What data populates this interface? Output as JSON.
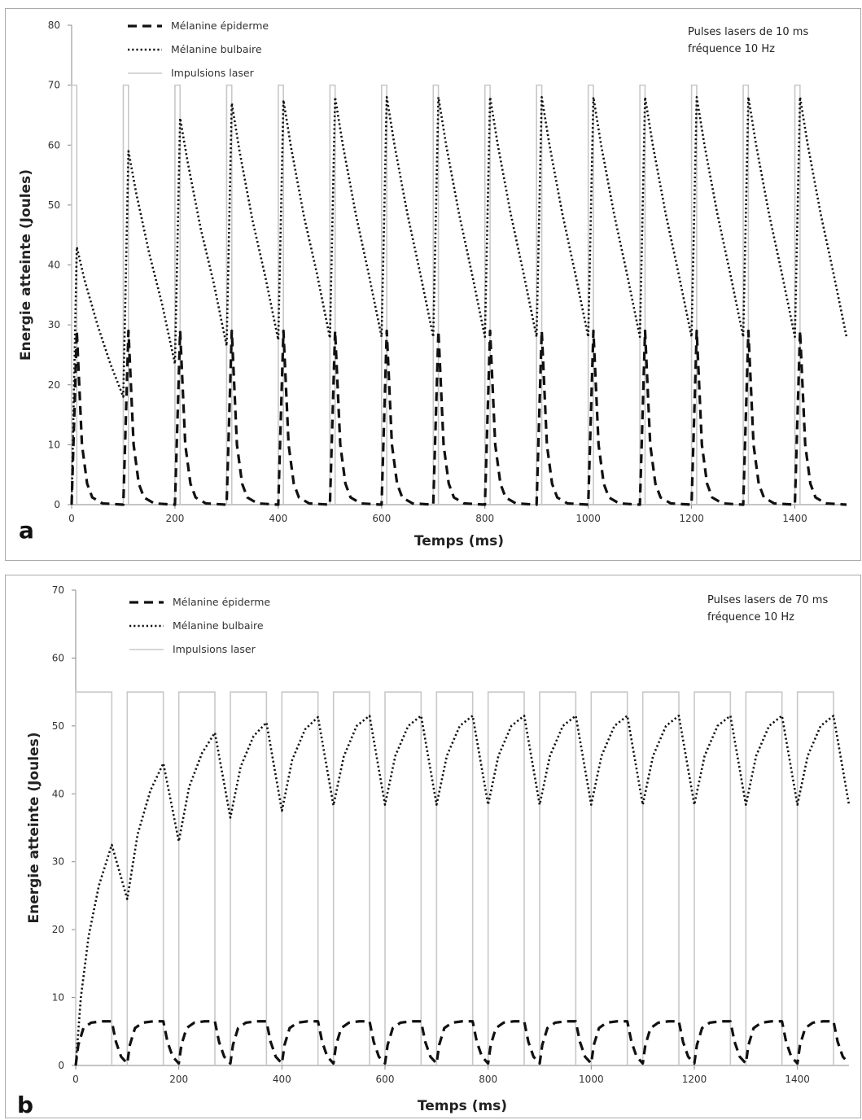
{
  "chart_data": [
    {
      "panel_label": "a",
      "type": "line",
      "xlabel": "Temps (ms)",
      "ylabel": "Energie atteinte (Joules)",
      "xlim": [
        0,
        1500
      ],
      "ylim": [
        0,
        80
      ],
      "x_ticks": [
        0,
        200,
        400,
        600,
        800,
        1000,
        1200,
        1400
      ],
      "y_ticks": [
        0,
        10,
        20,
        30,
        40,
        50,
        60,
        70,
        80
      ],
      "annotation": [
        "Pulses lasers de 10 ms",
        "fréquence 10 Hz"
      ],
      "legend_position": "top-left",
      "legend": [
        "Mélanine épiderme",
        "Mélanine bulbaire",
        "Impulsions laser"
      ],
      "laser_pulse": {
        "period": 100,
        "duration": 10,
        "level": 70
      },
      "series": [
        {
          "name": "Mélanine épiderme",
          "style": "dashed",
          "x": [
            0,
            10,
            20,
            30,
            40,
            60,
            100,
            110,
            120,
            130,
            140,
            160,
            200,
            210,
            220,
            230,
            240,
            260,
            300,
            310,
            320,
            330,
            340,
            360,
            400,
            410,
            420,
            430,
            440,
            460,
            500,
            510,
            520,
            530,
            540,
            560,
            600,
            610,
            620,
            630,
            640,
            660,
            700,
            710,
            720,
            730,
            740,
            760,
            800,
            810,
            820,
            830,
            840,
            860,
            900,
            910,
            920,
            930,
            940,
            960,
            1000,
            1010,
            1020,
            1030,
            1040,
            1060,
            1100,
            1110,
            1120,
            1130,
            1140,
            1160,
            1200,
            1210,
            1220,
            1230,
            1240,
            1260,
            1300,
            1310,
            1320,
            1330,
            1340,
            1360,
            1400,
            1410,
            1420,
            1430,
            1440,
            1460,
            1500
          ],
          "y": [
            0,
            29,
            10,
            3.5,
            1.2,
            0.2,
            0,
            29,
            10,
            3.5,
            1.2,
            0.2,
            0,
            29,
            10,
            3.5,
            1.2,
            0.2,
            0,
            29,
            10,
            3.5,
            1.2,
            0.2,
            0,
            29,
            10,
            3.5,
            1.2,
            0.2,
            0,
            29,
            10,
            3.5,
            1.2,
            0.2,
            0,
            29,
            10,
            3.5,
            1.2,
            0.2,
            0,
            29,
            10,
            3.5,
            1.2,
            0.2,
            0,
            29,
            10,
            3.5,
            1.2,
            0.2,
            0,
            29,
            10,
            3.5,
            1.2,
            0.2,
            0,
            29,
            10,
            3.5,
            1.2,
            0.2,
            0,
            29,
            10,
            3.5,
            1.2,
            0.2,
            0,
            29,
            10,
            3.5,
            1.2,
            0.2,
            0,
            29,
            10,
            3.5,
            1.2,
            0.2,
            0,
            29,
            10,
            3.5,
            1.2,
            0.2,
            0
          ]
        },
        {
          "name": "Mélanine bulbaire",
          "style": "dotted",
          "x": [
            0,
            10,
            25,
            50,
            75,
            100,
            110,
            125,
            150,
            175,
            200,
            210,
            225,
            250,
            275,
            300,
            310,
            325,
            350,
            375,
            400,
            410,
            425,
            450,
            475,
            500,
            510,
            525,
            550,
            575,
            600,
            610,
            625,
            650,
            675,
            700,
            710,
            725,
            750,
            775,
            800,
            810,
            825,
            850,
            875,
            900,
            910,
            925,
            950,
            975,
            1000,
            1010,
            1025,
            1050,
            1075,
            1100,
            1110,
            1125,
            1150,
            1175,
            1200,
            1210,
            1225,
            1250,
            1275,
            1300,
            1310,
            1325,
            1350,
            1375,
            1400,
            1410,
            1425,
            1450,
            1475,
            1500
          ],
          "y": [
            0,
            43,
            37.5,
            30,
            23.5,
            18,
            59,
            52,
            42,
            33.5,
            23.5,
            64.5,
            57,
            46,
            37,
            26.5,
            67,
            59,
            47.5,
            38,
            27.5,
            67.5,
            59.5,
            48,
            38.5,
            27.8,
            68,
            60,
            48.5,
            38.5,
            28,
            68,
            60,
            48.5,
            38.5,
            28,
            68,
            60,
            48.5,
            38.5,
            28,
            68,
            60,
            48.5,
            38.5,
            28,
            68,
            60,
            48.5,
            38.5,
            28,
            68,
            60,
            48.5,
            38.5,
            28,
            68,
            60,
            48.5,
            38.5,
            28,
            68,
            60,
            48.5,
            38.5,
            28,
            68,
            60,
            48.5,
            38.5,
            28,
            68,
            60,
            48.5,
            38.5,
            28
          ]
        }
      ]
    },
    {
      "panel_label": "b",
      "type": "line",
      "xlabel": "Temps (ms)",
      "ylabel": "Energie atteinte (Joules)",
      "xlim": [
        0,
        1500
      ],
      "ylim": [
        0,
        70
      ],
      "x_ticks": [
        0,
        200,
        400,
        600,
        800,
        1000,
        1200,
        1400
      ],
      "y_ticks": [
        0,
        10,
        20,
        30,
        40,
        50,
        60,
        70
      ],
      "annotation": [
        "Pulses lasers de 70 ms",
        "fréquence 10 Hz"
      ],
      "legend_position": "top-left",
      "legend": [
        "Mélanine épiderme",
        "Mélanine bulbaire",
        "Impulsions laser"
      ],
      "laser_pulse": {
        "period": 100,
        "duration": 70,
        "level": 55
      },
      "series": [
        {
          "name": "Mélanine épiderme",
          "style": "dashed",
          "x": [
            0,
            5,
            15,
            30,
            50,
            70,
            78,
            88,
            100,
            105,
            115,
            130,
            150,
            170,
            178,
            188,
            200,
            205,
            215,
            230,
            250,
            270,
            278,
            288,
            300,
            305,
            315,
            330,
            350,
            370,
            378,
            388,
            400,
            405,
            415,
            430,
            450,
            470,
            478,
            488,
            500,
            505,
            515,
            530,
            550,
            570,
            578,
            588,
            600,
            605,
            615,
            630,
            650,
            670,
            678,
            688,
            700,
            705,
            715,
            730,
            750,
            770,
            778,
            788,
            800,
            805,
            815,
            830,
            850,
            870,
            878,
            888,
            900,
            905,
            915,
            930,
            950,
            970,
            978,
            988,
            1000,
            1005,
            1015,
            1030,
            1050,
            1070,
            1078,
            1088,
            1100,
            1105,
            1115,
            1130,
            1150,
            1170,
            1178,
            1188,
            1200,
            1205,
            1215,
            1230,
            1250,
            1270,
            1278,
            1288,
            1300,
            1305,
            1315,
            1330,
            1350,
            1370,
            1378,
            1388,
            1400,
            1405,
            1415,
            1430,
            1450,
            1470,
            1478,
            1488,
            1500
          ],
          "y": [
            0,
            3,
            5.5,
            6.3,
            6.5,
            6.5,
            3.5,
            1.3,
            0.3,
            3,
            5.5,
            6.3,
            6.5,
            6.5,
            3.5,
            1.3,
            0.3,
            3,
            5.5,
            6.3,
            6.5,
            6.5,
            3.5,
            1.3,
            0.3,
            3,
            5.5,
            6.3,
            6.5,
            6.5,
            3.5,
            1.3,
            0.3,
            3,
            5.5,
            6.3,
            6.5,
            6.5,
            3.5,
            1.3,
            0.3,
            3,
            5.5,
            6.3,
            6.5,
            6.5,
            3.5,
            1.3,
            0.3,
            3,
            5.5,
            6.3,
            6.5,
            6.5,
            3.5,
            1.3,
            0.3,
            3,
            5.5,
            6.3,
            6.5,
            6.5,
            3.5,
            1.3,
            0.3,
            3,
            5.5,
            6.3,
            6.5,
            6.5,
            3.5,
            1.3,
            0.3,
            3,
            5.5,
            6.3,
            6.5,
            6.5,
            3.5,
            1.3,
            0.3,
            3,
            5.5,
            6.3,
            6.5,
            6.5,
            3.5,
            1.3,
            0.3,
            3,
            5.5,
            6.3,
            6.5,
            6.5,
            3.5,
            1.3,
            0.3,
            3,
            5.5,
            6.3,
            6.5,
            6.5,
            3.5,
            1.3,
            0.3,
            3,
            5.5,
            6.3,
            6.5,
            6.5,
            3.5,
            1.3,
            0.3,
            3,
            5.5,
            6.3,
            6.5,
            6.5,
            3.5,
            1.3,
            0.3
          ]
        },
        {
          "name": "Mélanine bulbaire",
          "style": "dotted",
          "x": [
            0,
            10,
            25,
            45,
            70,
            100,
            120,
            145,
            170,
            200,
            220,
            245,
            270,
            300,
            320,
            345,
            370,
            400,
            420,
            445,
            470,
            500,
            520,
            545,
            570,
            600,
            620,
            645,
            670,
            700,
            720,
            745,
            770,
            800,
            820,
            845,
            870,
            900,
            920,
            945,
            970,
            1000,
            1020,
            1045,
            1070,
            1100,
            1120,
            1145,
            1170,
            1200,
            1220,
            1245,
            1270,
            1300,
            1320,
            1345,
            1370,
            1400,
            1420,
            1445,
            1470,
            1500
          ],
          "y": [
            0,
            10,
            19,
            26.5,
            32.5,
            24.5,
            34,
            40.5,
            44.5,
            33,
            41,
            46,
            49,
            36.5,
            44,
            48.5,
            50.5,
            37.5,
            45,
            49.5,
            51.3,
            38.3,
            45.5,
            50,
            51.5,
            38.4,
            45.6,
            50,
            51.5,
            38.4,
            45.6,
            50,
            51.5,
            38.4,
            45.6,
            50,
            51.5,
            38.4,
            45.6,
            50,
            51.5,
            38.4,
            45.6,
            50,
            51.5,
            38.4,
            45.6,
            50,
            51.5,
            38.4,
            45.6,
            50,
            51.5,
            38.4,
            45.6,
            50,
            51.5,
            38.4,
            45.6,
            50,
            51.5,
            38.4
          ]
        }
      ]
    }
  ]
}
